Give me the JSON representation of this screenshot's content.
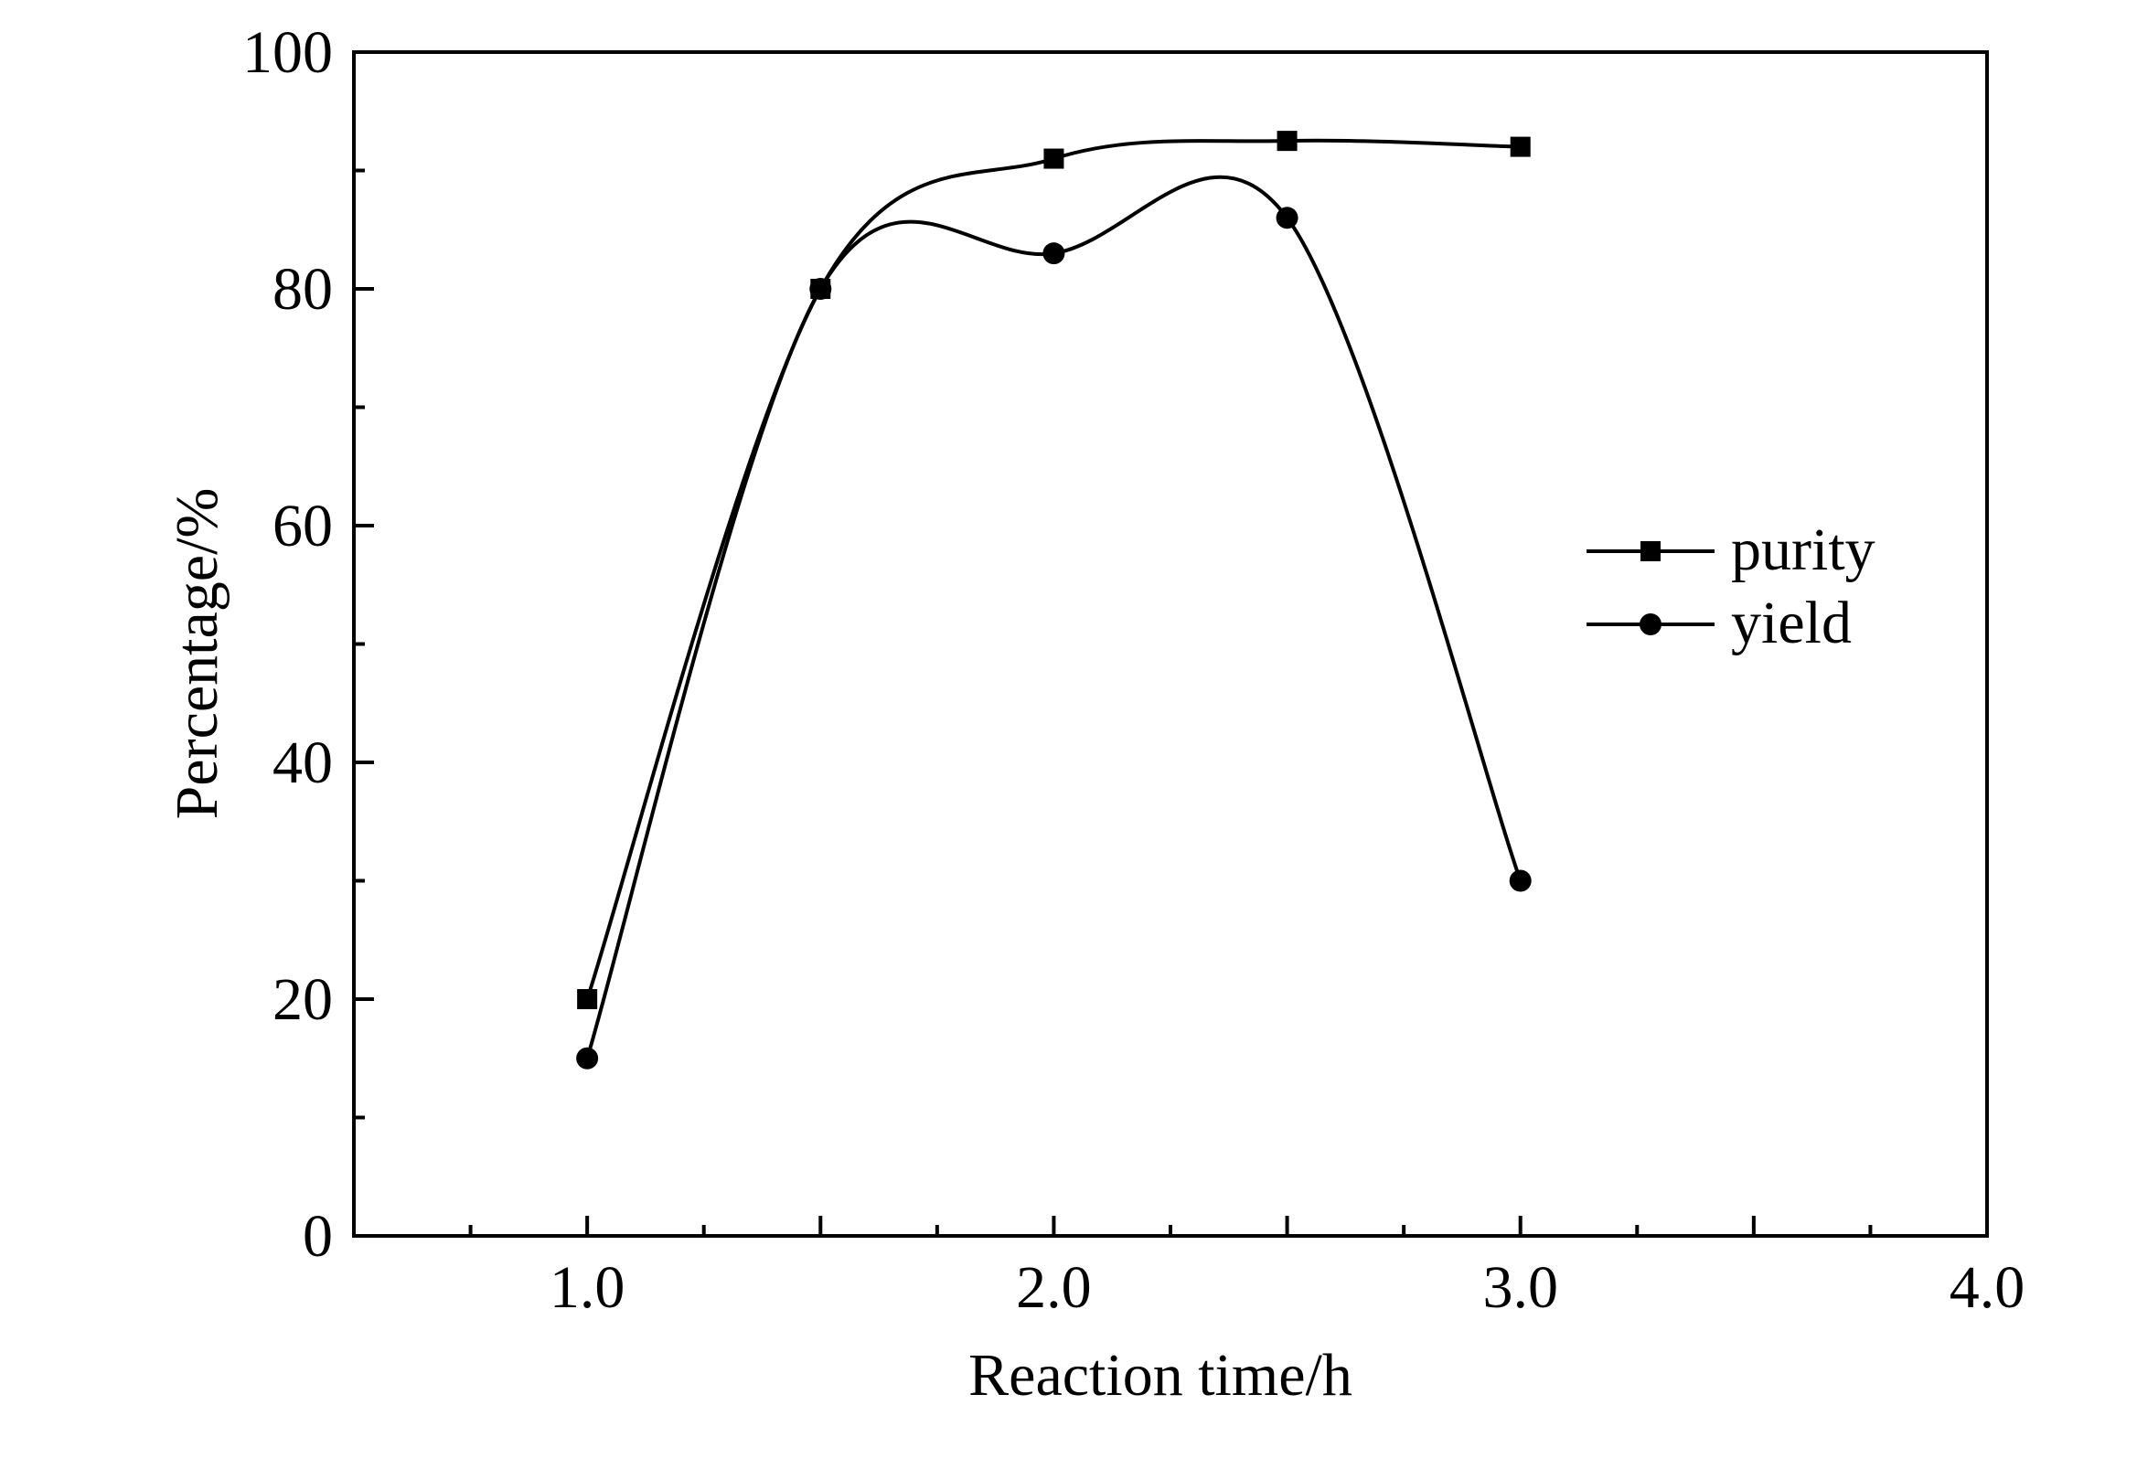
{
  "chart_data": {
    "type": "line",
    "title": "",
    "xlabel": "Reaction time/h",
    "ylabel": "Percentage/%",
    "xlim": [
      0.5,
      4.0
    ],
    "ylim": [
      0,
      100
    ],
    "x_ticks": [
      "1.0",
      "2.0",
      "3.0",
      "4.0"
    ],
    "y_ticks": [
      "0",
      "20",
      "40",
      "60",
      "80",
      "100"
    ],
    "grid": false,
    "legend_position": "right",
    "x": [
      1.0,
      1.5,
      2.0,
      2.5,
      3.0
    ],
    "series": [
      {
        "name": "purity",
        "marker": "square",
        "values": [
          20,
          80,
          91,
          92.5,
          92
        ]
      },
      {
        "name": "yield",
        "marker": "circle",
        "values": [
          15,
          80,
          83,
          86,
          30
        ]
      }
    ]
  }
}
